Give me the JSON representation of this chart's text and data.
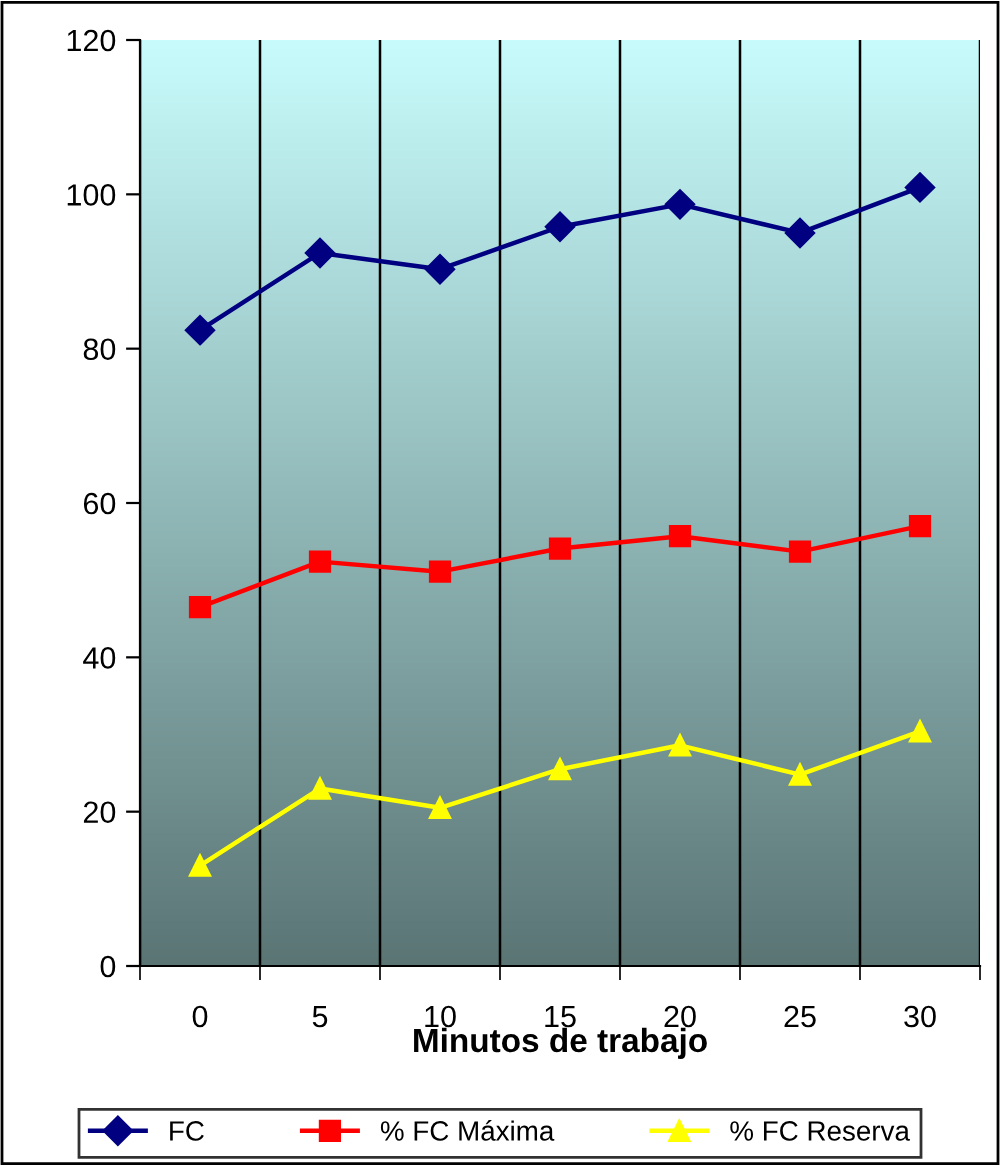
{
  "chart_data": {
    "type": "line",
    "xlabel": "Minutos de trabajo",
    "categories": [
      "0",
      "5",
      "10",
      "15",
      "20",
      "25",
      "30"
    ],
    "series": [
      {
        "name": "FC",
        "color": "#000080",
        "marker": "diamond",
        "values": [
          82.4,
          92.4,
          90.3,
          95.8,
          98.7,
          95.0,
          100.9
        ]
      },
      {
        "name": "% FC Máxima",
        "color": "#ff0000",
        "marker": "square",
        "values": [
          46.5,
          52.4,
          51.1,
          54.1,
          55.7,
          53.7,
          57.0
        ]
      },
      {
        "name": "% FC Reserva",
        "color": "#ffff00",
        "marker": "triangle",
        "values": [
          13.0,
          23.0,
          20.5,
          25.5,
          28.6,
          24.8,
          30.4
        ]
      }
    ],
    "ylim": [
      0,
      120
    ],
    "yticks": [
      0,
      20,
      40,
      60,
      80,
      100,
      120
    ],
    "grid": "x",
    "legend": "bottom",
    "line_style": "solid"
  }
}
